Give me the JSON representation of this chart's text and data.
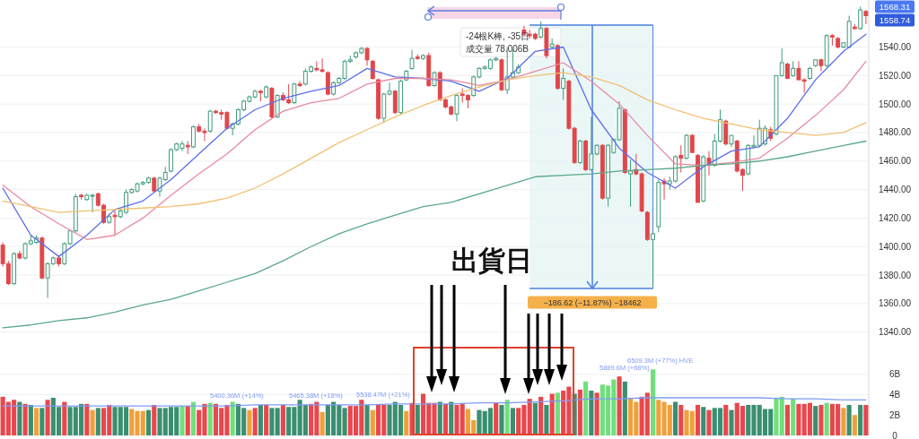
{
  "chart_data": [
    {
      "type": "candlestick",
      "tick_labels": "y",
      "grid": "y",
      "categories": [
        null,
        null,
        null,
        null,
        null,
        null,
        null,
        null,
        null,
        null,
        null,
        null,
        null,
        null,
        null,
        null,
        null,
        null,
        null,
        null,
        null,
        null,
        null,
        null,
        null,
        null,
        null,
        null,
        null,
        null,
        null,
        null,
        null,
        null,
        null,
        null,
        null,
        null,
        null,
        null,
        null,
        null,
        null,
        null,
        null,
        null,
        null,
        null,
        null,
        null,
        null,
        null,
        null,
        null,
        null,
        null,
        null,
        null,
        null,
        null,
        null,
        null,
        null,
        null,
        null,
        null,
        null,
        null,
        null,
        null,
        null,
        null,
        null,
        null,
        null,
        null,
        null,
        null,
        null,
        null,
        null,
        null,
        null,
        null,
        null,
        null,
        null,
        null,
        null,
        null,
        null,
        null,
        null,
        null,
        null,
        null,
        null,
        null,
        null,
        null,
        null,
        null,
        null,
        null,
        null,
        null,
        null,
        null,
        null,
        null,
        null,
        null,
        null,
        null,
        null,
        null,
        null,
        null,
        null,
        null,
        null,
        null,
        null,
        null,
        null,
        null,
        null,
        null,
        null,
        null,
        null,
        null,
        null,
        null,
        null,
        null,
        null,
        null,
        null,
        null,
        null,
        null,
        null,
        null,
        null,
        null,
        null,
        null,
        null,
        null,
        null,
        null,
        null,
        null,
        null
      ],
      "ohlc": [
        [
          1401,
          1403,
          1386,
          1388
        ],
        [
          1388,
          1390,
          1373,
          1374
        ],
        [
          1374,
          1396,
          1373,
          1395
        ],
        [
          1395,
          1397,
          1391,
          1392
        ],
        [
          1392,
          1403,
          1391,
          1402
        ],
        [
          1402,
          1408,
          1401,
          1404
        ],
        [
          1403,
          1408,
          1402,
          1406
        ],
        [
          1406,
          1407,
          1377,
          1378
        ],
        [
          1378,
          1389,
          1364,
          1388
        ],
        [
          1388,
          1393,
          1387,
          1392
        ],
        [
          1392,
          1394,
          1386,
          1388
        ],
        [
          1388,
          1403,
          1387,
          1402
        ],
        [
          1402,
          1412,
          1401,
          1411
        ],
        [
          1411,
          1437,
          1410,
          1435
        ],
        [
          1436,
          1437,
          1433,
          1435
        ],
        [
          1433,
          1437,
          1432,
          1436
        ],
        [
          1436,
          1437,
          1424,
          1436
        ],
        [
          1437,
          1438,
          1428,
          1429
        ],
        [
          1429,
          1430,
          1416,
          1417
        ],
        [
          1417,
          1423,
          1416,
          1421
        ],
        [
          1422,
          1426,
          1408,
          1421
        ],
        [
          1421,
          1426,
          1420,
          1425
        ],
        [
          1424,
          1440,
          1423,
          1438
        ],
        [
          1438,
          1441,
          1437,
          1440
        ],
        [
          1439,
          1445,
          1438,
          1444
        ],
        [
          1444,
          1446,
          1443,
          1445
        ],
        [
          1445,
          1449,
          1444,
          1448
        ],
        [
          1448,
          1449,
          1438,
          1439
        ],
        [
          1439,
          1449,
          1435,
          1448
        ],
        [
          1447,
          1456,
          1446,
          1452
        ],
        [
          1453,
          1469,
          1452,
          1468
        ],
        [
          1468,
          1473,
          1467,
          1472
        ],
        [
          1469,
          1474,
          1467,
          1472
        ],
        [
          1471,
          1474,
          1465,
          1470
        ],
        [
          1470,
          1485,
          1469,
          1484
        ],
        [
          1484,
          1486,
          1480,
          1481
        ],
        [
          1481,
          1483,
          1474,
          1480
        ],
        [
          1481,
          1496,
          1480,
          1495
        ],
        [
          1495,
          1496,
          1493,
          1494
        ],
        [
          1494,
          1496,
          1489,
          1493
        ],
        [
          1494,
          1495,
          1482,
          1483
        ],
        [
          1483,
          1487,
          1478,
          1486
        ],
        [
          1486,
          1497,
          1485,
          1496
        ],
        [
          1496,
          1503,
          1495,
          1502
        ],
        [
          1502,
          1506,
          1501,
          1505
        ],
        [
          1505,
          1510,
          1504,
          1509
        ],
        [
          1509,
          1510,
          1502,
          1508
        ],
        [
          1505,
          1513,
          1504,
          1512
        ],
        [
          1511,
          1512,
          1490,
          1491
        ],
        [
          1491,
          1507,
          1490,
          1506
        ],
        [
          1506,
          1508,
          1502,
          1503
        ],
        [
          1503,
          1514,
          1500,
          1501
        ],
        [
          1501,
          1515,
          1500,
          1514
        ],
        [
          1514,
          1516,
          1512,
          1513
        ],
        [
          1514,
          1525,
          1513,
          1523
        ],
        [
          1523,
          1527,
          1522,
          1526
        ],
        [
          1525,
          1530,
          1523,
          1524
        ],
        [
          1524,
          1532,
          1522,
          1523
        ],
        [
          1522,
          1523,
          1506,
          1507
        ],
        [
          1507,
          1516,
          1506,
          1515
        ],
        [
          1515,
          1519,
          1514,
          1518
        ],
        [
          1518,
          1531,
          1517,
          1530
        ],
        [
          1530,
          1534,
          1529,
          1531
        ],
        [
          1533,
          1537,
          1532,
          1536
        ],
        [
          1536,
          1540,
          1535,
          1539
        ],
        [
          1539,
          1540,
          1527,
          1531
        ],
        [
          1530,
          1531,
          1517,
          1518
        ],
        [
          1517,
          1518,
          1489,
          1490
        ],
        [
          1490,
          1508,
          1487,
          1507
        ],
        [
          1507,
          1515,
          1506,
          1509
        ],
        [
          1509,
          1510,
          1493,
          1494
        ],
        [
          1494,
          1517,
          1493,
          1516
        ],
        [
          1517,
          1524,
          1516,
          1523
        ],
        [
          1525,
          1538,
          1524,
          1532
        ],
        [
          1533,
          1535,
          1531,
          1532
        ],
        [
          1532,
          1535,
          1531,
          1534
        ],
        [
          1534,
          1536,
          1512,
          1513
        ],
        [
          1513,
          1523,
          1512,
          1522
        ],
        [
          1522,
          1523,
          1502,
          1503
        ],
        [
          1503,
          1504,
          1497,
          1498
        ],
        [
          1498,
          1499,
          1492,
          1493
        ],
        [
          1493,
          1507,
          1488,
          1506
        ],
        [
          1507,
          1511,
          1501,
          1506
        ],
        [
          1506,
          1507,
          1497,
          1503
        ],
        [
          1506,
          1520,
          1505,
          1519
        ],
        [
          1519,
          1526,
          1518,
          1525
        ],
        [
          1525,
          1527,
          1524,
          1526
        ],
        [
          1525,
          1532,
          1524,
          1531
        ],
        [
          1531,
          1533,
          1530,
          1532
        ],
        [
          1531,
          1532,
          1509,
          1510
        ],
        [
          1510,
          1540,
          1507,
          1519
        ],
        [
          1519,
          1538,
          1518,
          1522
        ],
        [
          1522,
          1528,
          1521,
          1526
        ],
        [
          1552,
          1555,
          1548,
          1549
        ],
        [
          1549,
          1552,
          1546,
          1548
        ],
        [
          1549,
          1550,
          1545,
          1546
        ],
        [
          1547,
          1558,
          1546,
          1553
        ],
        [
          1553,
          1554,
          1532,
          1534
        ],
        [
          1540,
          1546,
          1539,
          1542
        ],
        [
          1541,
          1542,
          1510,
          1511
        ],
        [
          1511,
          1525,
          1503,
          1518
        ],
        [
          1516,
          1517,
          1482,
          1483
        ],
        [
          1483,
          1484,
          1458,
          1459
        ],
        [
          1459,
          1475,
          1458,
          1474
        ],
        [
          1474,
          1475,
          1453,
          1454
        ],
        [
          1454,
          1491,
          1453,
          1465
        ],
        [
          1465,
          1472,
          1464,
          1471
        ],
        [
          1471,
          1472,
          1433,
          1434
        ],
        [
          1434,
          1472,
          1428,
          1471
        ],
        [
          1466,
          1476,
          1465,
          1475
        ],
        [
          1475,
          1502,
          1474,
          1497
        ],
        [
          1496,
          1497,
          1451,
          1452
        ],
        [
          1451,
          1461,
          1428,
          1453
        ],
        [
          1454,
          1465,
          1450,
          1451
        ],
        [
          1451,
          1452,
          1424,
          1425
        ],
        [
          1424,
          1425,
          1404,
          1405
        ],
        [
          1405,
          1410,
          1372.12,
          1409
        ],
        [
          1414,
          1447,
          1410,
          1445
        ],
        [
          1446,
          1448,
          1433,
          1444
        ],
        [
          1444,
          1449,
          1440,
          1446
        ],
        [
          1446,
          1464,
          1445,
          1463
        ],
        [
          1464,
          1471,
          1452,
          1462
        ],
        [
          1462,
          1479,
          1461,
          1478
        ],
        [
          1478,
          1479,
          1466,
          1466
        ],
        [
          1464,
          1465,
          1431,
          1431
        ],
        [
          1432,
          1464,
          1431,
          1463
        ],
        [
          1462,
          1467,
          1450,
          1457
        ],
        [
          1457,
          1479,
          1456,
          1474
        ],
        [
          1474,
          1496,
          1473,
          1489
        ],
        [
          1488,
          1489,
          1471,
          1472
        ],
        [
          1472,
          1478,
          1470,
          1478
        ],
        [
          1474,
          1475,
          1452,
          1453
        ],
        [
          1454,
          1455,
          1439,
          1450
        ],
        [
          1451,
          1472,
          1450,
          1471
        ],
        [
          1470,
          1478,
          1469,
          1471
        ],
        [
          1471,
          1489,
          1470,
          1483
        ],
        [
          1472,
          1485,
          1471,
          1483
        ],
        [
          1482,
          1484,
          1474,
          1476
        ],
        [
          1479,
          1520,
          1478,
          1520
        ],
        [
          1520,
          1539,
          1519,
          1529
        ],
        [
          1528,
          1529,
          1518,
          1518
        ],
        [
          1520,
          1530,
          1519,
          1525
        ],
        [
          1525,
          1530,
          1517,
          1517
        ],
        [
          1517,
          1518,
          1508,
          1516
        ],
        [
          1518,
          1526,
          1517,
          1525
        ],
        [
          1527,
          1531,
          1526,
          1531
        ],
        [
          1531,
          1532,
          1523,
          1527
        ],
        [
          1527,
          1549,
          1526,
          1548
        ],
        [
          1548,
          1549,
          1541,
          1547
        ],
        [
          1546,
          1547,
          1539,
          1540
        ],
        [
          1540,
          1543,
          1539,
          1543
        ],
        [
          1540,
          1562,
          1539,
          1558
        ],
        [
          1554,
          1556,
          1552,
          1553
        ],
        [
          1553,
          1568.31,
          1552,
          1566
        ],
        [
          1565,
          1566,
          1556,
          1562
        ]
      ],
      "series": [
        {
          "type": "line",
          "color": "#5b6ee8",
          "values": [
            1441,
            null,
            null,
            null,
            null,
            1408,
            null,
            null,
            null,
            null,
            1393,
            null,
            null,
            null,
            null,
            1408,
            null,
            null,
            null,
            null,
            1426,
            null,
            null,
            null,
            null,
            1432,
            null,
            null,
            null,
            null,
            1447,
            null,
            null,
            null,
            null,
            1465,
            null,
            null,
            null,
            null,
            1483,
            null,
            null,
            null,
            null,
            1496,
            null,
            null,
            null,
            null,
            1504,
            null,
            null,
            null,
            null,
            1509,
            null,
            null,
            null,
            null,
            1513,
            null,
            null,
            null,
            null,
            1525,
            null,
            null,
            null,
            null,
            1519,
            null,
            null,
            null,
            null,
            1518,
            null,
            null,
            null,
            null,
            1516,
            null,
            null,
            null,
            null,
            1509,
            null,
            null,
            null,
            null,
            1518,
            null,
            null,
            null,
            null,
            1537,
            null,
            null,
            null,
            null,
            1540,
            null,
            null,
            null,
            null,
            1496,
            null,
            null,
            null,
            null,
            1469,
            null,
            null,
            null,
            null,
            1452,
            null,
            null,
            null,
            null,
            1441,
            null,
            null,
            null,
            null,
            1456,
            null,
            null,
            null,
            null,
            1467,
            null,
            null,
            null,
            null,
            1470,
            null,
            null,
            null,
            null,
            1490,
            null,
            null,
            null,
            null,
            1517,
            null,
            null,
            null,
            null,
            1537,
            null,
            null,
            null,
            1549
          ]
        },
        {
          "type": "line",
          "color": "#e88a9e",
          "values": [
            1443,
            null,
            null,
            null,
            null,
            1428,
            null,
            null,
            null,
            null,
            1416,
            null,
            null,
            null,
            null,
            1405,
            null,
            null,
            null,
            null,
            1408,
            null,
            null,
            null,
            null,
            1420,
            null,
            null,
            null,
            null,
            1436,
            null,
            null,
            null,
            null,
            1451,
            null,
            null,
            null,
            null,
            1465,
            null,
            null,
            null,
            null,
            1482,
            null,
            null,
            null,
            null,
            1495,
            null,
            null,
            null,
            null,
            1501,
            null,
            null,
            null,
            null,
            1504,
            null,
            null,
            null,
            null,
            1514,
            null,
            null,
            null,
            null,
            1518,
            null,
            null,
            null,
            null,
            1518,
            null,
            null,
            null,
            null,
            1517,
            null,
            null,
            null,
            null,
            1513,
            null,
            null,
            null,
            null,
            1517,
            null,
            null,
            null,
            null,
            1523,
            null,
            null,
            null,
            null,
            1529,
            null,
            null,
            null,
            null,
            1516,
            null,
            null,
            null,
            null,
            1500,
            null,
            null,
            null,
            null,
            1478,
            null,
            null,
            null,
            null,
            1458,
            null,
            null,
            null,
            null,
            1457,
            null,
            null,
            null,
            null,
            1459,
            null,
            null,
            null,
            null,
            1462,
            null,
            null,
            null,
            null,
            1476,
            null,
            null,
            null,
            null,
            1492,
            null,
            null,
            null,
            null,
            1510,
            null,
            null,
            null,
            1530
          ]
        },
        {
          "type": "line",
          "color": "#f2c073",
          "values": [
            1432,
            null,
            null,
            null,
            null,
            1428,
            null,
            null,
            null,
            null,
            1424,
            null,
            null,
            null,
            null,
            1425,
            null,
            null,
            null,
            null,
            1426,
            null,
            null,
            null,
            null,
            1427,
            null,
            null,
            null,
            null,
            1428,
            null,
            null,
            null,
            null,
            1430,
            null,
            null,
            null,
            null,
            1434,
            null,
            null,
            null,
            null,
            1441,
            null,
            null,
            null,
            null,
            1451,
            null,
            null,
            null,
            null,
            1462,
            null,
            null,
            null,
            null,
            1473,
            null,
            null,
            null,
            null,
            1482,
            null,
            null,
            null,
            null,
            1491,
            null,
            null,
            null,
            null,
            1499,
            null,
            null,
            null,
            null,
            1506,
            null,
            null,
            null,
            null,
            1512,
            null,
            null,
            null,
            null,
            1517,
            null,
            null,
            null,
            null,
            1520,
            null,
            null,
            null,
            null,
            1522,
            null,
            null,
            null,
            null,
            1519,
            null,
            null,
            null,
            null,
            1513,
            null,
            null,
            null,
            null,
            1503,
            null,
            null,
            null,
            null,
            1496,
            null,
            null,
            null,
            null,
            1490,
            null,
            null,
            null,
            null,
            1486,
            null,
            null,
            null,
            null,
            1482,
            null,
            null,
            null,
            null,
            1480,
            null,
            null,
            null,
            null,
            1478,
            null,
            null,
            null,
            null,
            1480,
            null,
            null,
            null,
            1487
          ]
        },
        {
          "type": "line",
          "color": "#5aa889",
          "values": [
            1343,
            null,
            null,
            null,
            null,
            1345,
            null,
            null,
            null,
            null,
            1348,
            null,
            null,
            null,
            null,
            1350,
            null,
            null,
            null,
            null,
            1354,
            null,
            null,
            null,
            null,
            1359,
            null,
            null,
            null,
            null,
            1363,
            null,
            null,
            null,
            null,
            1369,
            null,
            null,
            null,
            null,
            1375,
            null,
            null,
            null,
            null,
            1381,
            null,
            null,
            null,
            null,
            1390,
            null,
            null,
            null,
            null,
            1400,
            null,
            null,
            null,
            null,
            1409,
            null,
            null,
            null,
            null,
            1416,
            null,
            null,
            null,
            null,
            1422,
            null,
            null,
            null,
            null,
            1428,
            null,
            null,
            null,
            null,
            1431,
            null,
            null,
            null,
            null,
            1437,
            null,
            null,
            null,
            null,
            1443,
            null,
            null,
            null,
            null,
            1449,
            null,
            null,
            null,
            null,
            1450,
            null,
            null,
            null,
            null,
            1451,
            null,
            null,
            null,
            null,
            1453,
            null,
            null,
            null,
            null,
            1454,
            null,
            null,
            null,
            null,
            1455,
            null,
            null,
            null,
            null,
            1457,
            null,
            null,
            null,
            null,
            1458,
            null,
            null,
            null,
            null,
            1460,
            null,
            null,
            null,
            null,
            1463,
            null,
            null,
            null,
            null,
            1467,
            null,
            null,
            null,
            null,
            1471,
            null,
            null,
            null,
            1474
          ]
        }
      ],
      "ylim": [
        1331,
        1573
      ],
      "yticks": [
        {
          "value": 1340,
          "label": "1340.00"
        },
        {
          "value": 1360,
          "label": "1360.00"
        },
        {
          "value": 1380,
          "label": "1380.00"
        },
        {
          "value": 1400,
          "label": "1400.00"
        },
        {
          "value": 1420,
          "label": "1420.00"
        },
        {
          "value": 1440,
          "label": "1440.00"
        },
        {
          "value": 1460,
          "label": "1460.00"
        },
        {
          "value": 1480,
          "label": "1480.00"
        },
        {
          "value": 1500,
          "label": "1500.00"
        },
        {
          "value": 1520,
          "label": "1520.00"
        },
        {
          "value": 1540,
          "label": "1540.00"
        }
      ],
      "annotations": [
        "出貨日",
        "-24根K棒, -35日",
        "成交量 78.006B",
        "−186.62 (−11.87%) −18462",
        "1568.31",
        "1558.74"
      ]
    },
    {
      "type": "bar",
      "tick_labels": "y",
      "grid": "y",
      "categories": [
        null,
        null,
        null,
        null,
        null,
        null,
        null,
        null,
        null,
        null,
        null,
        null,
        null,
        null,
        null,
        null,
        null,
        null,
        null,
        null,
        null,
        null,
        null,
        null,
        null,
        null,
        null,
        null,
        null,
        null,
        null,
        null,
        null,
        null,
        null,
        null,
        null,
        null,
        null,
        null,
        null,
        null,
        null,
        null,
        null,
        null,
        null,
        null,
        null,
        null,
        null,
        null,
        null,
        null,
        null,
        null,
        null,
        null,
        null,
        null,
        null,
        null,
        null,
        null,
        null,
        null,
        null,
        null,
        null,
        null,
        null,
        null,
        null,
        null,
        null,
        null,
        null,
        null,
        null,
        null,
        null,
        null,
        null,
        null,
        null,
        null,
        null,
        null,
        null,
        null,
        null,
        null,
        null,
        null,
        null,
        null,
        null,
        null,
        null,
        null,
        null,
        null,
        null,
        null,
        null,
        null,
        null,
        null,
        null,
        null,
        null,
        null,
        null,
        null,
        null,
        null,
        null,
        null,
        null,
        null,
        null,
        null,
        null,
        null,
        null,
        null,
        null,
        null,
        null,
        null,
        null,
        null,
        null,
        null,
        null,
        null,
        null,
        null,
        null,
        null,
        null,
        null,
        null,
        null,
        null,
        null,
        null,
        null,
        null,
        null,
        null,
        null,
        null,
        null,
        null
      ],
      "values": [
        3.8,
        3.3,
        3.5,
        3.3,
        3.1,
        3.0,
        2.7,
        2.7,
        3.5,
        3.7,
        2.8,
        3.3,
        2.8,
        2.8,
        3.1,
        3.1,
        2.5,
        2.7,
        2.7,
        3.0,
        2.8,
        2.8,
        2.8,
        2.6,
        2.4,
        2.4,
        2.5,
        3.0,
        2.7,
        2.7,
        2.8,
        2.8,
        2.9,
        2.9,
        3.3,
        2.5,
        3.1,
        3.2,
        3.1,
        2.7,
        3.0,
        3.3,
        3.1,
        2.7,
        2.5,
        2.7,
        3.0,
        3.0,
        2.7,
        2.7,
        3.0,
        2.8,
        2.8,
        3.5,
        3.0,
        3.1,
        3.3,
        2.3,
        3.0,
        3.3,
        3.0,
        2.7,
        2.9,
        2.9,
        3.5,
        3.0,
        2.5,
        3.0,
        3.0,
        3.0,
        3.3,
        3.0,
        2.4,
        3.2,
        3.0,
        4.1,
        3.2,
        3.2,
        3.3,
        3.1,
        3.3,
        3.0,
        3.1,
        2.6,
        1.5,
        2.5,
        2.4,
        2.7,
        3.2,
        3.0,
        3.5,
        2.7,
        2.7,
        3.0,
        3.6,
        3.2,
        3.8,
        3.0,
        4.1,
        4.2,
        4.4,
        4.8,
        4.1,
        4.5,
        5.3,
        4.4,
        4.2,
        5.0,
        4.9,
        5.5,
        5.8,
        5.3,
        3.7,
        3.3,
        3.8,
        4.2,
        6.5,
        3.5,
        3.3,
        3.0,
        3.3,
        3.0,
        2.5,
        2.4,
        3.0,
        2.8,
        2.5,
        2.7,
        2.7,
        3.0,
        2.5,
        3.2,
        2.9,
        3.0,
        3.0,
        3.0,
        2.6,
        2.6,
        3.7,
        3.8,
        3.0,
        3.6,
        3.1,
        3.1,
        3.2,
        2.9,
        3.0,
        3.2,
        3.1,
        3.1,
        2.7,
        3.0,
        2.0,
        3.0,
        3.0
      ],
      "colors": [
        "#e8474d",
        "#e8474d",
        "#e8474d",
        "#3a8f70",
        "#e8474d",
        "#3a8f70",
        "#f0a03a",
        "#3a8f70",
        "#e8474d",
        "#3a8f70",
        "#3a8f70",
        "#e8474d",
        "#3a8f70",
        "#3a8f70",
        "#3a8f70",
        "#e8474d",
        "#f0a03a",
        "#3a8f70",
        "#e8474d",
        "#e8474d",
        "#3a8f70",
        "#3a8f70",
        "#3a8f70",
        "#f0a03a",
        "#f0a03a",
        "#f0a03a",
        "#3a8f70",
        "#e8474d",
        "#3a8f70",
        "#3a8f70",
        "#3a8f70",
        "#3a8f70",
        "#70df7c",
        "#e8474d",
        "#70df7c",
        "#e8474d",
        "#e8474d",
        "#70df7c",
        "#e8474d",
        "#e8474d",
        "#e8474d",
        "#70df7c",
        "#3a8f70",
        "#3a8f70",
        "#f0a03a",
        "#e8474d",
        "#3a8f70",
        "#e8474d",
        "#3a8f70",
        "#3a8f70",
        "#e8474d",
        "#3a8f70",
        "#3a8f70",
        "#3a8f70",
        "#3a8f70",
        "#e8474d",
        "#e8474d",
        "#f0a03a",
        "#3a8f70",
        "#3a8f70",
        "#3a8f70",
        "#3a8f70",
        "#e8474d",
        "#e8474d",
        "#e8474d",
        "#3a8f70",
        "#f0a03a",
        "#e8474d",
        "#e8474d",
        "#3a8f70",
        "#3a8f70",
        "#3a8f70",
        "#f0a03a",
        "#e8474d",
        "#3a8f70",
        "#e8474d",
        "#e8474d",
        "#e8474d",
        "#3a8f70",
        "#e8474d",
        "#3a8f70",
        "#e8474d",
        "#e8474d",
        "#f0a03a",
        "#f0a03a",
        "#3a8f70",
        "#3a8f70",
        "#3a8f70",
        "#e8474d",
        "#3a8f70",
        "#70df7c",
        "#3a8f70",
        "#e8474d",
        "#e8474d",
        "#e8474d",
        "#3a8f70",
        "#e8474d",
        "#3a8f70",
        "#e8474d",
        "#70df7c",
        "#e8474d",
        "#e8474d",
        "#3a8f70",
        "#e8474d",
        "#70df7c",
        "#3a8f70",
        "#e8474d",
        "#70df7c",
        "#70df7c",
        "#70df7c",
        "#e8474d",
        "#3a8f70",
        "#f0a03a",
        "#f0a03a",
        "#e8474d",
        "#e8474d",
        "#70df7c",
        "#f0a03a",
        "#f0a03a",
        "#f0a03a",
        "#3a8f70",
        "#e8474d",
        "#f0a03a",
        "#f0a03a",
        "#e8474d",
        "#3a8f70",
        "#e8474d",
        "#3a8f70",
        "#3a8f70",
        "#e8474d",
        "#3a8f70",
        "#e8474d",
        "#e8474d",
        "#3a8f70",
        "#3a8f70",
        "#3a8f70",
        "#3a8f70",
        "#3a8f70",
        "#70df7c",
        "#70df7c",
        "#e8474d",
        "#70df7c",
        "#e8474d",
        "#e8474d",
        "#e8474d",
        "#3a8f70",
        "#e8474d",
        "#70df7c",
        "#e8474d",
        "#e8474d",
        "#f0a03a",
        "#3a8f70",
        "#f0a03a",
        "#3a8f70",
        "#e8474d"
      ],
      "series": [
        {
          "type": "line",
          "color": "#7f9cf5",
          "values": [
            2.9,
            null,
            null,
            null,
            null,
            2.9,
            null,
            null,
            null,
            null,
            2.9,
            null,
            null,
            null,
            null,
            2.9,
            null,
            null,
            null,
            null,
            2.9,
            null,
            null,
            null,
            null,
            2.9,
            null,
            null,
            null,
            null,
            2.9,
            null,
            null,
            null,
            null,
            2.9,
            null,
            null,
            null,
            null,
            2.9,
            null,
            null,
            null,
            null,
            3.0,
            null,
            null,
            null,
            null,
            3.0,
            null,
            null,
            null,
            null,
            3.0,
            null,
            null,
            null,
            null,
            3.0,
            null,
            null,
            null,
            null,
            3.0,
            null,
            null,
            null,
            null,
            3.1,
            null,
            null,
            null,
            null,
            3.1,
            null,
            null,
            null,
            null,
            3.1,
            null,
            null,
            null,
            null,
            3.2,
            null,
            null,
            null,
            null,
            3.2,
            null,
            null,
            null,
            null,
            3.3,
            null,
            null,
            null,
            null,
            3.4,
            null,
            null,
            null,
            null,
            3.6,
            null,
            null,
            null,
            null,
            3.6,
            null,
            null,
            null,
            null,
            3.7,
            null,
            null,
            null,
            null,
            3.7,
            null,
            null,
            null,
            null,
            3.7,
            null,
            null,
            null,
            null,
            3.7,
            null,
            null,
            null,
            null,
            3.7,
            null,
            null,
            null,
            null,
            3.6,
            null,
            null,
            null,
            null,
            3.6,
            null,
            null,
            null,
            null,
            3.5,
            null,
            null,
            null,
            3.5
          ]
        }
      ],
      "ylim": [
        0,
        8.9
      ],
      "yticks": [
        0,
        {
          "value": 2,
          "label": "2B"
        },
        {
          "value": 4,
          "label": "4B"
        },
        {
          "value": 6,
          "label": "6B"
        }
      ],
      "annotations": [
        "5400.36M (+14%)",
        "5465.38M (+18%)",
        "5538.47M (+21%)",
        "5889.6M (+68%)",
        "6509.3M (+77%) HVE"
      ]
    }
  ]
}
